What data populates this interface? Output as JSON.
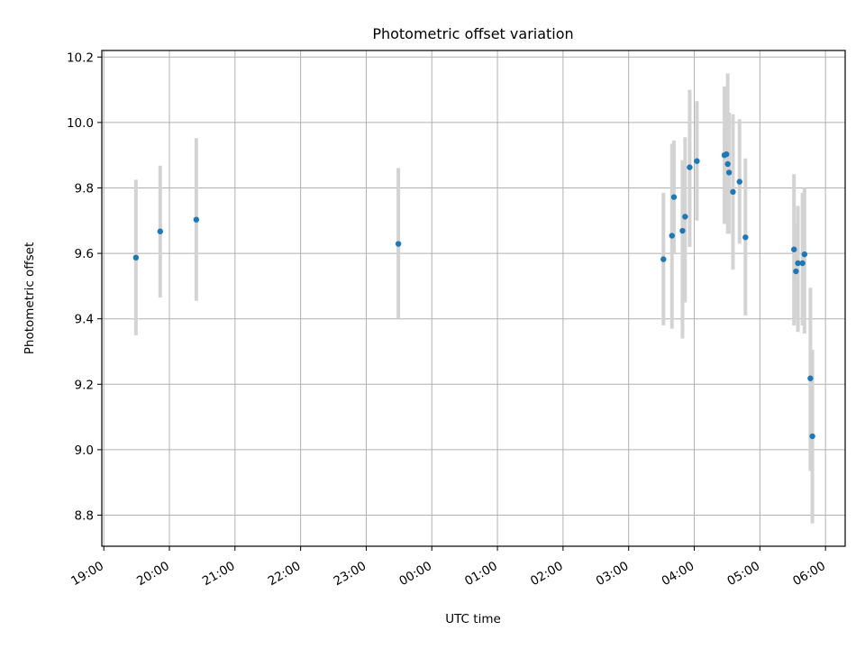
{
  "chart_data": {
    "type": "scatter",
    "title": "Photometric offset variation",
    "xlabel": "UTC time",
    "ylabel": "Photometric offset",
    "x_unit": "hours (UTC, continuing past midnight)",
    "xlim": [
      18.97,
      30.3
    ],
    "ylim": [
      8.705,
      10.22
    ],
    "grid": true,
    "x_ticks": [
      {
        "value": 19,
        "label": "19:00"
      },
      {
        "value": 20,
        "label": "20:00"
      },
      {
        "value": 21,
        "label": "21:00"
      },
      {
        "value": 22,
        "label": "22:00"
      },
      {
        "value": 23,
        "label": "23:00"
      },
      {
        "value": 24,
        "label": "00:00"
      },
      {
        "value": 25,
        "label": "01:00"
      },
      {
        "value": 26,
        "label": "02:00"
      },
      {
        "value": 27,
        "label": "03:00"
      },
      {
        "value": 28,
        "label": "04:00"
      },
      {
        "value": 29,
        "label": "05:00"
      },
      {
        "value": 30,
        "label": "06:00"
      }
    ],
    "y_ticks": [
      {
        "value": 8.8,
        "label": "8.8"
      },
      {
        "value": 9.0,
        "label": "9.0"
      },
      {
        "value": 9.2,
        "label": "9.2"
      },
      {
        "value": 9.4,
        "label": "9.4"
      },
      {
        "value": 9.6,
        "label": "9.6"
      },
      {
        "value": 9.8,
        "label": "9.8"
      },
      {
        "value": 10.0,
        "label": "10.0"
      },
      {
        "value": 10.2,
        "label": "10.2"
      }
    ],
    "points": [
      {
        "x": 19.49,
        "y": 9.587,
        "err_low": 9.35,
        "err_high": 9.825
      },
      {
        "x": 19.86,
        "y": 9.667,
        "err_low": 9.465,
        "err_high": 9.868
      },
      {
        "x": 20.41,
        "y": 9.703,
        "err_low": 9.455,
        "err_high": 9.952
      },
      {
        "x": 23.49,
        "y": 9.629,
        "err_low": 9.4,
        "err_high": 9.861
      },
      {
        "x": 27.53,
        "y": 9.582,
        "err_low": 9.38,
        "err_high": 9.785
      },
      {
        "x": 27.66,
        "y": 9.654,
        "err_low": 9.37,
        "err_high": 9.935
      },
      {
        "x": 27.69,
        "y": 9.772,
        "err_low": 9.6,
        "err_high": 9.945
      },
      {
        "x": 27.82,
        "y": 9.669,
        "err_low": 9.34,
        "err_high": 9.885
      },
      {
        "x": 27.86,
        "y": 9.712,
        "err_low": 9.45,
        "err_high": 9.955
      },
      {
        "x": 27.93,
        "y": 9.863,
        "err_low": 9.62,
        "err_high": 10.1
      },
      {
        "x": 28.04,
        "y": 9.882,
        "err_low": 9.7,
        "err_high": 10.065
      },
      {
        "x": 28.46,
        "y": 9.9,
        "err_low": 9.69,
        "err_high": 10.11
      },
      {
        "x": 28.49,
        "y": 9.903,
        "err_low": 9.71,
        "err_high": 10.09
      },
      {
        "x": 28.51,
        "y": 9.873,
        "err_low": 9.66,
        "err_high": 10.15
      },
      {
        "x": 28.53,
        "y": 9.847,
        "err_low": 9.66,
        "err_high": 10.03
      },
      {
        "x": 28.59,
        "y": 9.788,
        "err_low": 9.55,
        "err_high": 10.025
      },
      {
        "x": 28.69,
        "y": 9.819,
        "err_low": 9.63,
        "err_high": 10.01
      },
      {
        "x": 28.78,
        "y": 9.649,
        "err_low": 9.41,
        "err_high": 9.89
      },
      {
        "x": 29.52,
        "y": 9.612,
        "err_low": 9.38,
        "err_high": 9.842
      },
      {
        "x": 29.55,
        "y": 9.545,
        "err_low": 9.4,
        "err_high": 9.69
      },
      {
        "x": 29.58,
        "y": 9.57,
        "err_low": 9.36,
        "err_high": 9.745
      },
      {
        "x": 29.65,
        "y": 9.57,
        "err_low": 9.38,
        "err_high": 9.785
      },
      {
        "x": 29.68,
        "y": 9.597,
        "err_low": 9.355,
        "err_high": 9.8
      },
      {
        "x": 29.77,
        "y": 9.218,
        "err_low": 8.935,
        "err_high": 9.495
      },
      {
        "x": 29.8,
        "y": 9.041,
        "err_low": 8.775,
        "err_high": 9.305
      }
    ],
    "colors": {
      "point": "#1f77b4",
      "errorbar": "#d3d3d3",
      "grid": "#b0b0b0"
    }
  }
}
